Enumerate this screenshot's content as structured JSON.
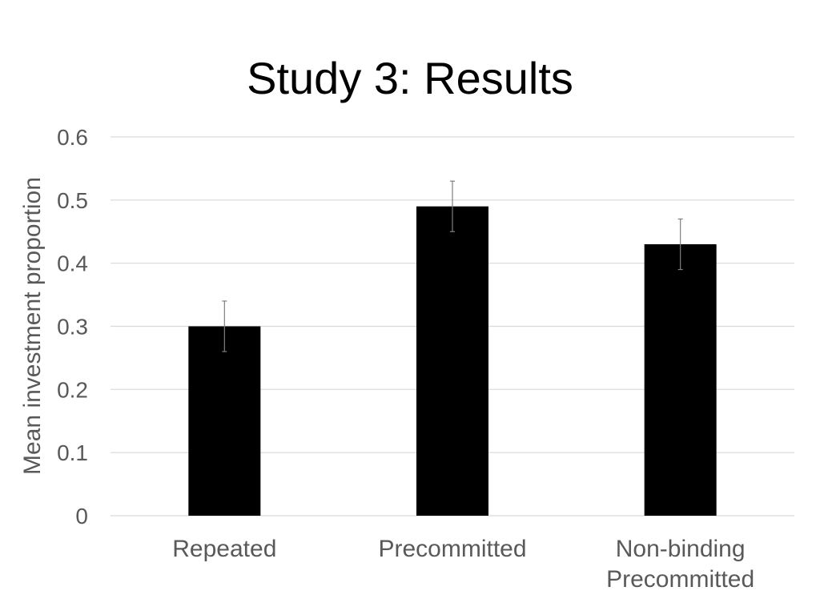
{
  "slide": {
    "title": "Study 3: Results"
  },
  "chart_data": {
    "type": "bar",
    "title": "",
    "xlabel": "",
    "ylabel": "Mean investment proportion",
    "categories": [
      {
        "lines": [
          "Repeated"
        ],
        "name": "Repeated"
      },
      {
        "lines": [
          "Precommitted"
        ],
        "name": "Precommitted"
      },
      {
        "lines": [
          "Non-binding",
          "Precommitted"
        ],
        "name": "Non-binding Precommitted"
      }
    ],
    "values": [
      0.3,
      0.49,
      0.43
    ],
    "error_low": [
      0.26,
      0.45,
      0.39
    ],
    "error_high": [
      0.34,
      0.53,
      0.47
    ],
    "ylim": [
      0,
      0.6
    ],
    "yticks": [
      "0",
      "0.1",
      "0.2",
      "0.3",
      "0.4",
      "0.5",
      "0.6"
    ],
    "grid": true,
    "legend": "none",
    "colors": {
      "bar": "#000000",
      "grid": "#d9d9d9",
      "error_bar": "#7f7f7f",
      "text": "#595959"
    }
  }
}
